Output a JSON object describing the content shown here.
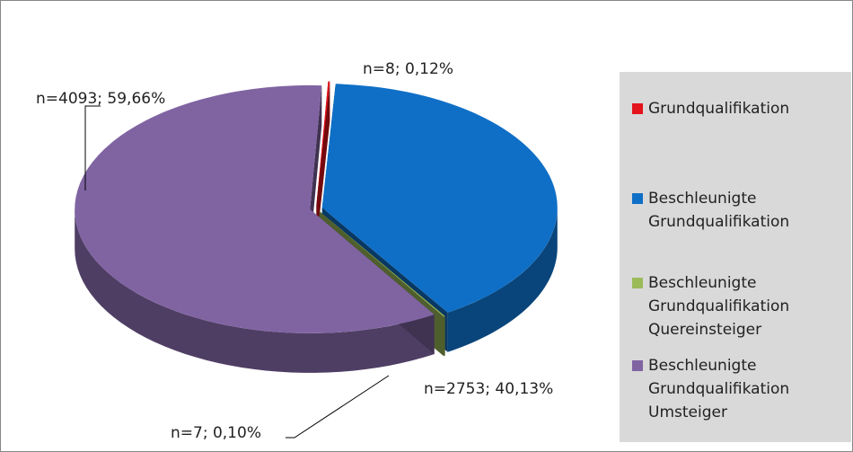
{
  "chart_data": {
    "type": "pie3d",
    "series": [
      {
        "name": "Grundqualifikation",
        "color": "#e3141c"
      },
      {
        "name": "Beschleunigte Grundqualifikation",
        "color": "#0f6fc6"
      },
      {
        "name": "Beschleunigte Grundqualifikation Quereinsteiger",
        "color": "#9bbb59"
      },
      {
        "name": "Beschleunigte Grundqualifikation Umsteiger",
        "color": "#8064a2"
      }
    ],
    "values": [
      8,
      2753,
      7,
      4093
    ],
    "value_labels": [
      "n=8; 0,12%",
      "n=2753; 40,13%",
      "n=7; 0,10%",
      "n=4093; 59,66%"
    ],
    "legend": "right"
  }
}
